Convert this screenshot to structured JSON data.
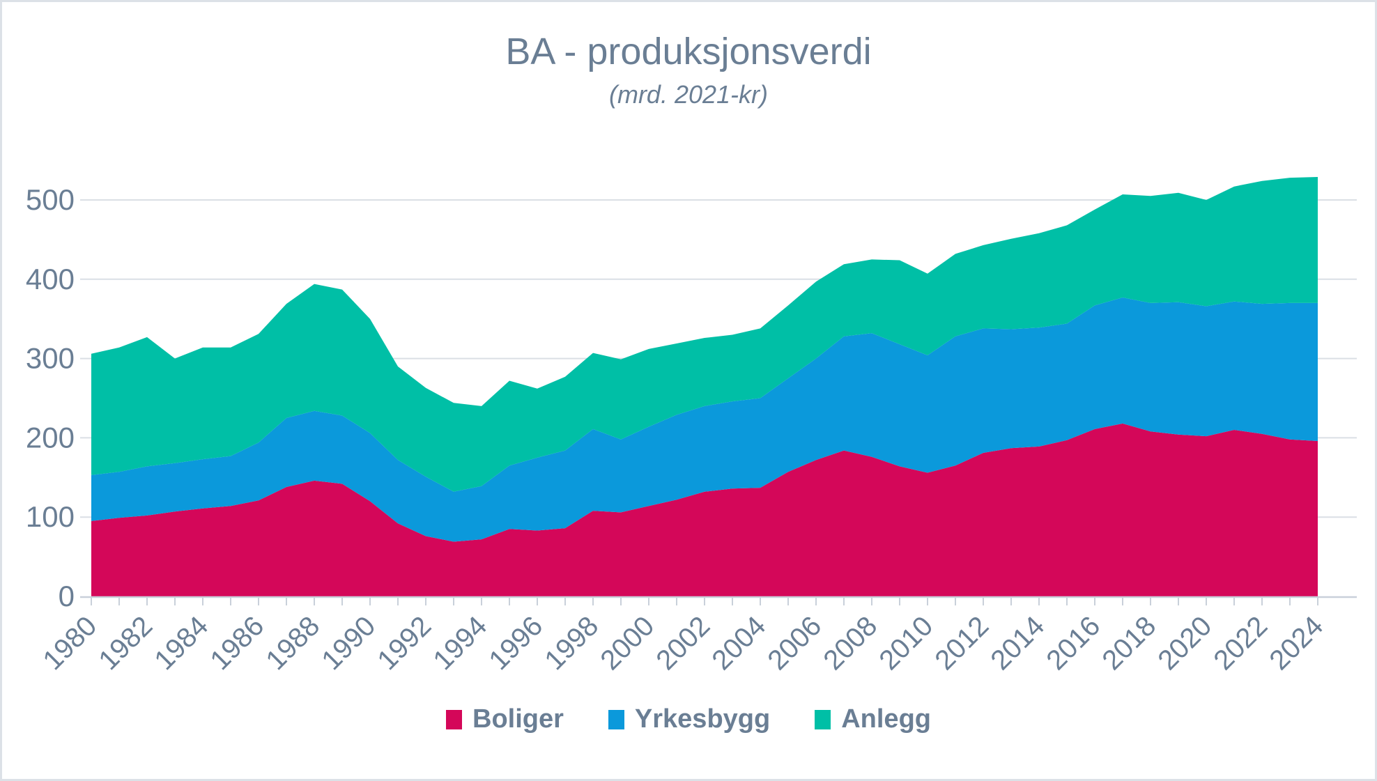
{
  "chart_data": {
    "type": "area",
    "stacked": true,
    "title": "BA - produksjonsverdi",
    "subtitle": "(mrd. 2021-kr)",
    "unit": "mrd. 2021-kr",
    "x": [
      1980,
      1981,
      1982,
      1983,
      1984,
      1985,
      1986,
      1987,
      1988,
      1989,
      1990,
      1991,
      1992,
      1993,
      1994,
      1995,
      1996,
      1997,
      1998,
      1999,
      2000,
      2001,
      2002,
      2003,
      2004,
      2005,
      2006,
      2007,
      2008,
      2009,
      2010,
      2011,
      2012,
      2013,
      2014,
      2015,
      2016,
      2017,
      2018,
      2019,
      2020,
      2021,
      2022,
      2023,
      2024
    ],
    "x_tick_years": [
      1980,
      1982,
      1984,
      1986,
      1988,
      1990,
      1992,
      1994,
      1996,
      1998,
      2000,
      2002,
      2004,
      2006,
      2008,
      2010,
      2012,
      2014,
      2016,
      2018,
      2020,
      2022,
      2024
    ],
    "y_ticks": [
      0,
      100,
      200,
      300,
      400,
      500
    ],
    "ylim": [
      0,
      540
    ],
    "grid": "horizontal",
    "legend_position": "bottom",
    "series": [
      {
        "name": "Boliger",
        "color": "#d40759",
        "values": [
          95,
          99,
          102,
          107,
          111,
          114,
          121,
          138,
          146,
          142,
          120,
          92,
          76,
          69,
          72,
          85,
          83,
          86,
          108,
          106,
          114,
          122,
          132,
          136,
          137,
          157,
          172,
          184,
          176,
          164,
          156,
          165,
          181,
          187,
          189,
          197,
          211,
          218,
          208,
          204,
          202,
          210,
          205,
          198,
          196
        ]
      },
      {
        "name": "Yrkesbygg",
        "color": "#0b99db",
        "values": [
          58,
          58,
          62,
          61,
          62,
          63,
          73,
          87,
          88,
          86,
          86,
          80,
          75,
          63,
          67,
          80,
          92,
          98,
          103,
          92,
          100,
          107,
          108,
          110,
          113,
          118,
          128,
          144,
          156,
          154,
          148,
          163,
          157,
          150,
          150,
          147,
          156,
          159,
          162,
          167,
          164,
          162,
          164,
          172,
          174
        ]
      },
      {
        "name": "Anlegg",
        "color": "#00bfa6",
        "values": [
          153,
          157,
          163,
          132,
          141,
          137,
          137,
          144,
          160,
          159,
          144,
          118,
          112,
          112,
          101,
          107,
          87,
          93,
          96,
          101,
          98,
          90,
          86,
          84,
          88,
          92,
          97,
          91,
          93,
          106,
          103,
          104,
          105,
          114,
          119,
          124,
          121,
          130,
          135,
          138,
          134,
          145,
          155,
          158,
          159
        ]
      }
    ]
  },
  "colors": {
    "text": "#6a7e94",
    "gridline": "#dadfe5",
    "axis": "#c9d0da",
    "frame_border": "#dce1e7",
    "background": "#ffffff"
  }
}
